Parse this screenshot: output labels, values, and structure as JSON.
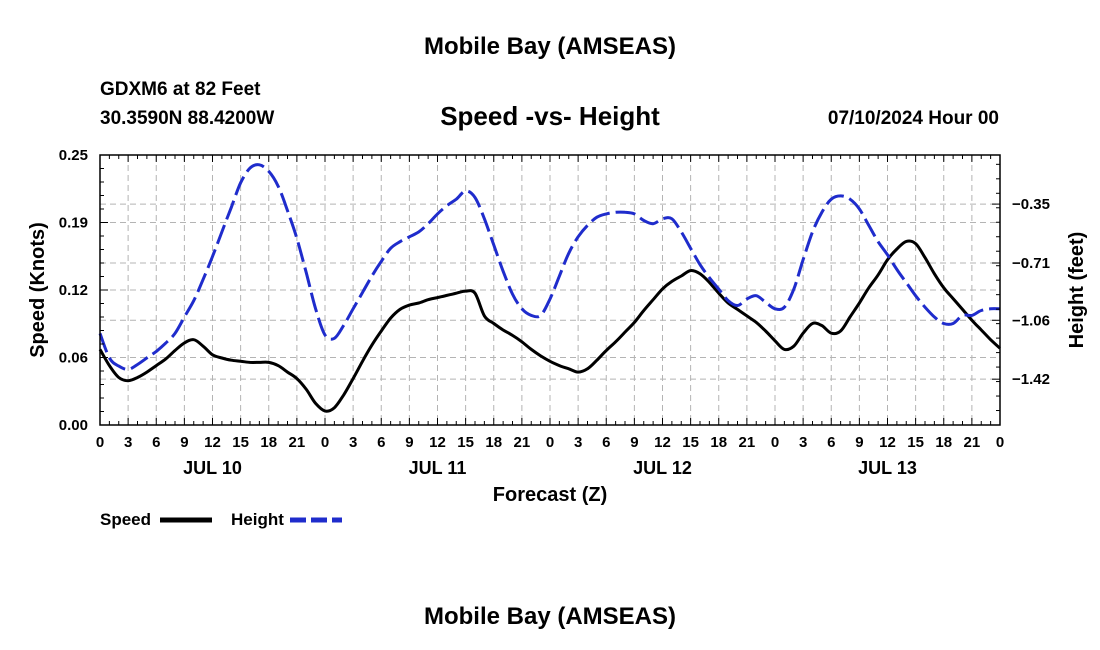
{
  "chart_data": {
    "type": "line",
    "title": "Mobile Bay (AMSEAS)",
    "subtitle": "Speed -vs- Height",
    "footer_title": "Mobile Bay (AMSEAS)",
    "station": "GDXM6 at 82 Feet",
    "location": "30.3590N  88.4200W",
    "run_time": "07/10/2024 Hour 00",
    "xlabel": "Forecast (Z)",
    "ylabel_left": "Speed (Knots)",
    "ylabel_right": "Height (feet)",
    "x_unit": "forecast hour",
    "xlim": [
      0,
      96
    ],
    "ylim_left": [
      0,
      0.25
    ],
    "ylim_right": [
      -1.7,
      -0.05
    ],
    "left_ticks": [
      "0.00",
      "0.06",
      "0.12",
      "0.19",
      "0.25"
    ],
    "left_tick_values": [
      0.0,
      0.0625,
      0.125,
      0.1875,
      0.25
    ],
    "right_ticks": [
      "−1.42",
      "−1.06",
      "−0.71",
      "−0.35"
    ],
    "right_tick_values": [
      -1.42,
      -1.06,
      -0.71,
      -0.35
    ],
    "x_tick_labels": [
      "0",
      "3",
      "6",
      "9",
      "12",
      "15",
      "18",
      "21",
      "0",
      "3",
      "6",
      "9",
      "12",
      "15",
      "18",
      "21",
      "0",
      "3",
      "6",
      "9",
      "12",
      "15",
      "18",
      "21",
      "0",
      "3",
      "6",
      "9",
      "12",
      "15",
      "18",
      "21",
      "0"
    ],
    "day_labels": [
      "JUL 10",
      "JUL 11",
      "JUL 12",
      "JUL 13"
    ],
    "day_label_hours": [
      12,
      36,
      60,
      84
    ],
    "grid": true,
    "legend_position": "bottom-left",
    "series": [
      {
        "name": "Speed",
        "axis": "left",
        "color": "#000000",
        "dash": "solid",
        "x": [
          0,
          1,
          2,
          3,
          4,
          5,
          6,
          7,
          8,
          9,
          10,
          11,
          12,
          13,
          14,
          15,
          16,
          17,
          18,
          19,
          20,
          21,
          22,
          23,
          24,
          25,
          26,
          27,
          28,
          29,
          30,
          31,
          32,
          33,
          34,
          35,
          36,
          37,
          38,
          39,
          40,
          41,
          42,
          43,
          44,
          45,
          46,
          47,
          48,
          49,
          50,
          51,
          52,
          53,
          54,
          55,
          56,
          57,
          58,
          59,
          60,
          61,
          62,
          63,
          64,
          65,
          66,
          67,
          68,
          69,
          70,
          71,
          72,
          73,
          74,
          75,
          76,
          77,
          78,
          79,
          80,
          81,
          82,
          83,
          84,
          85,
          86,
          87,
          88,
          89,
          90,
          91,
          92,
          93,
          94,
          95,
          96
        ],
        "values": [
          0.07,
          0.055,
          0.044,
          0.041,
          0.044,
          0.049,
          0.055,
          0.061,
          0.069,
          0.076,
          0.079,
          0.073,
          0.065,
          0.062,
          0.06,
          0.059,
          0.058,
          0.058,
          0.058,
          0.055,
          0.049,
          0.043,
          0.033,
          0.02,
          0.013,
          0.016,
          0.028,
          0.043,
          0.059,
          0.074,
          0.087,
          0.099,
          0.107,
          0.111,
          0.113,
          0.116,
          0.118,
          0.12,
          0.122,
          0.124,
          0.122,
          0.101,
          0.094,
          0.088,
          0.083,
          0.077,
          0.07,
          0.064,
          0.059,
          0.055,
          0.052,
          0.049,
          0.052,
          0.06,
          0.069,
          0.077,
          0.086,
          0.095,
          0.106,
          0.116,
          0.126,
          0.133,
          0.138,
          0.143,
          0.14,
          0.132,
          0.122,
          0.113,
          0.107,
          0.101,
          0.095,
          0.087,
          0.078,
          0.07,
          0.073,
          0.085,
          0.094,
          0.092,
          0.085,
          0.087,
          0.1,
          0.113,
          0.127,
          0.139,
          0.153,
          0.163,
          0.17,
          0.168,
          0.155,
          0.14,
          0.127,
          0.117,
          0.107,
          0.097,
          0.088,
          0.079,
          0.071
        ]
      },
      {
        "name": "Height",
        "axis": "right",
        "color": "#1f2ccc",
        "dash": "dashed",
        "x": [
          0,
          1,
          2,
          3,
          4,
          5,
          6,
          7,
          8,
          9,
          10,
          11,
          12,
          13,
          14,
          15,
          16,
          17,
          18,
          19,
          20,
          21,
          22,
          23,
          24,
          25,
          26,
          27,
          28,
          29,
          30,
          31,
          32,
          33,
          34,
          35,
          36,
          37,
          38,
          39,
          40,
          41,
          42,
          43,
          44,
          45,
          46,
          47,
          48,
          49,
          50,
          51,
          52,
          53,
          54,
          55,
          56,
          57,
          58,
          59,
          60,
          61,
          62,
          63,
          64,
          65,
          66,
          67,
          68,
          69,
          70,
          71,
          72,
          73,
          74,
          75,
          76,
          77,
          78,
          79,
          80,
          81,
          82,
          83,
          84,
          85,
          86,
          87,
          88,
          89,
          90,
          91,
          92,
          93,
          94,
          95,
          96
        ],
        "values": [
          -1.14,
          -1.29,
          -1.34,
          -1.36,
          -1.33,
          -1.29,
          -1.25,
          -1.2,
          -1.14,
          -1.04,
          -0.94,
          -0.81,
          -0.67,
          -0.52,
          -0.37,
          -0.22,
          -0.13,
          -0.11,
          -0.15,
          -0.24,
          -0.39,
          -0.56,
          -0.77,
          -0.99,
          -1.15,
          -1.17,
          -1.09,
          -0.99,
          -0.89,
          -0.79,
          -0.7,
          -0.62,
          -0.58,
          -0.55,
          -0.52,
          -0.47,
          -0.41,
          -0.36,
          -0.32,
          -0.27,
          -0.31,
          -0.44,
          -0.6,
          -0.76,
          -0.9,
          -0.99,
          -1.03,
          -1.03,
          -0.93,
          -0.79,
          -0.65,
          -0.55,
          -0.48,
          -0.43,
          -0.41,
          -0.4,
          -0.4,
          -0.41,
          -0.45,
          -0.47,
          -0.44,
          -0.44,
          -0.52,
          -0.62,
          -0.72,
          -0.8,
          -0.87,
          -0.94,
          -0.97,
          -0.93,
          -0.91,
          -0.95,
          -0.99,
          -0.98,
          -0.87,
          -0.69,
          -0.52,
          -0.4,
          -0.32,
          -0.3,
          -0.32,
          -0.38,
          -0.48,
          -0.58,
          -0.66,
          -0.75,
          -0.83,
          -0.91,
          -0.98,
          -1.04,
          -1.08,
          -1.08,
          -1.03,
          -1.03,
          -1.0,
          -0.99,
          -0.99
        ]
      }
    ]
  }
}
